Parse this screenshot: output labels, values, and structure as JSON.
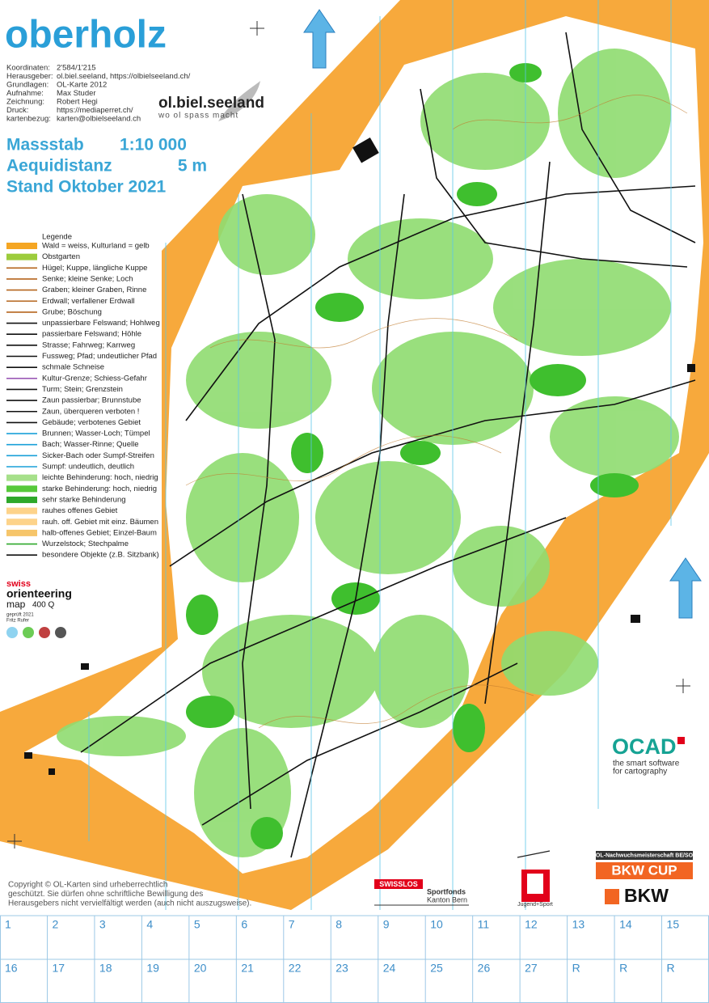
{
  "title": "oberholz",
  "metadata": [
    {
      "label": "Koordinaten:",
      "value": "2'584/1'215"
    },
    {
      "label": "Herausgeber:",
      "value": "ol.biel.seeland, https://olbielseeland.ch/"
    },
    {
      "label": "Grundlagen:",
      "value": "OL-Karte 2012"
    },
    {
      "label": "Aufnahme:",
      "value": "Max Studer"
    },
    {
      "label": "Zeichnung:",
      "value": "Robert Hegi"
    },
    {
      "label": "Druck:",
      "value": "https://mediaperret.ch/"
    },
    {
      "label": "kartenbezug:",
      "value": "karten@olbielseeland.ch"
    }
  ],
  "club_logo": {
    "name": "ol.biel.seeland",
    "slogan": "wo ol spass macht"
  },
  "scale": {
    "massstab_label": "Massstab",
    "massstab_value": "1:10 000",
    "aequidistanz_label": "Aequidistanz",
    "aequidistanz_value": "5 m",
    "stand": "Stand Oktober 2021"
  },
  "legend": {
    "title": "Legende",
    "items": [
      {
        "label": "Wald = weiss, Kulturland = gelb",
        "color": "#f5a623"
      },
      {
        "label": "Obstgarten",
        "color": "#9ccc3c"
      },
      {
        "label": "Hügel; Kuppe, längliche Kuppe",
        "color": "#b5651d"
      },
      {
        "label": "Senke; kleine Senke; Loch",
        "color": "#b5651d"
      },
      {
        "label": "Graben; kleiner Graben, Rinne",
        "color": "#b5651d"
      },
      {
        "label": "Erdwall; verfallener Erdwall",
        "color": "#b5651d"
      },
      {
        "label": "Grube; Böschung",
        "color": "#b5651d"
      },
      {
        "label": "unpassierbare Felswand; Hohlweg",
        "color": "#111111"
      },
      {
        "label": "passierbare Felswand; Höhle",
        "color": "#111111"
      },
      {
        "label": "Strasse; Fahrweg; Karrweg",
        "color": "#111111"
      },
      {
        "label": "Fussweg; Pfad; undeutlicher Pfad",
        "color": "#111111"
      },
      {
        "label": "schmale Schneise",
        "color": "#111111"
      },
      {
        "label": "Kultur-Grenze; Schiess-Gefahr",
        "color": "#9b59b6"
      },
      {
        "label": "Turm; Stein; Grenzstein",
        "color": "#111111"
      },
      {
        "label": "Zaun passierbar; Brunnstube",
        "color": "#111111"
      },
      {
        "label": "Zaun, überqueren verboten !",
        "color": "#111111"
      },
      {
        "label": "Gebäude; verbotenes Gebiet",
        "color": "#111111"
      },
      {
        "label": "Brunnen; Wasser-Loch; Tümpel",
        "color": "#1aa0d8"
      },
      {
        "label": "Bach; Wasser-Rinne; Quelle",
        "color": "#1aa0d8"
      },
      {
        "label": "Sicker-Bach oder Sumpf-Streifen",
        "color": "#1aa0d8"
      },
      {
        "label": "Sumpf: undeutlich, deutlich",
        "color": "#1aa0d8"
      },
      {
        "label": "leichte Behinderung: hoch, niedrig",
        "color": "#a6e08a"
      },
      {
        "label": "starke Behinderung: hoch, niedrig",
        "color": "#56c93a"
      },
      {
        "label": "sehr starke Behinderung",
        "color": "#2ea82a"
      },
      {
        "label": "rauhes offenes Gebiet",
        "color": "#fdd38a"
      },
      {
        "label": "rauh. off. Gebiet mit einz. Bäumen",
        "color": "#fdd38a"
      },
      {
        "label": "halb-offenes Gebiet; Einzel-Baum",
        "color": "#f6c56a"
      },
      {
        "label": "Wurzelstock; Stechpalme",
        "color": "#2ea82a"
      },
      {
        "label": "besondere Objekte (z.B. Sitzbank)",
        "color": "#111111"
      }
    ]
  },
  "swiss_orienteering": {
    "swiss": "swiss",
    "orienteering": "orienteering",
    "map": "map",
    "code": "400 Q",
    "checked": "geprüft 2021",
    "checker": "Fritz Rufer"
  },
  "ocad": {
    "name": "OCAD",
    "tagline": [
      "the smart software",
      "for cartography"
    ]
  },
  "copyright": [
    "Copyright ©  OL-Karten sind urheberrechtlich",
    "geschützt. Sie dürfen ohne schriftliche Bewilligung des",
    "Herausgebers nicht vervielfältigt werden (auch nicht auszugsweise)."
  ],
  "sponsors": {
    "swisslos": "SWISSLOS",
    "sportfonds": [
      "Sportfonds",
      "Kanton Bern"
    ],
    "js": "Jugend+Sport",
    "bkw_series": "OL-Nachwuchsmeisterschaft BE/SO",
    "bkw_cup": "BKW CUP",
    "bkw": "BKW"
  },
  "control_grid": {
    "rows": [
      [
        "1",
        "2",
        "3",
        "4",
        "5",
        "6",
        "7",
        "8",
        "9",
        "10",
        "11",
        "12",
        "13",
        "14",
        "15"
      ],
      [
        "16",
        "17",
        "18",
        "19",
        "20",
        "21",
        "22",
        "23",
        "24",
        "25",
        "26",
        "27",
        "R",
        "R",
        "R"
      ]
    ]
  }
}
